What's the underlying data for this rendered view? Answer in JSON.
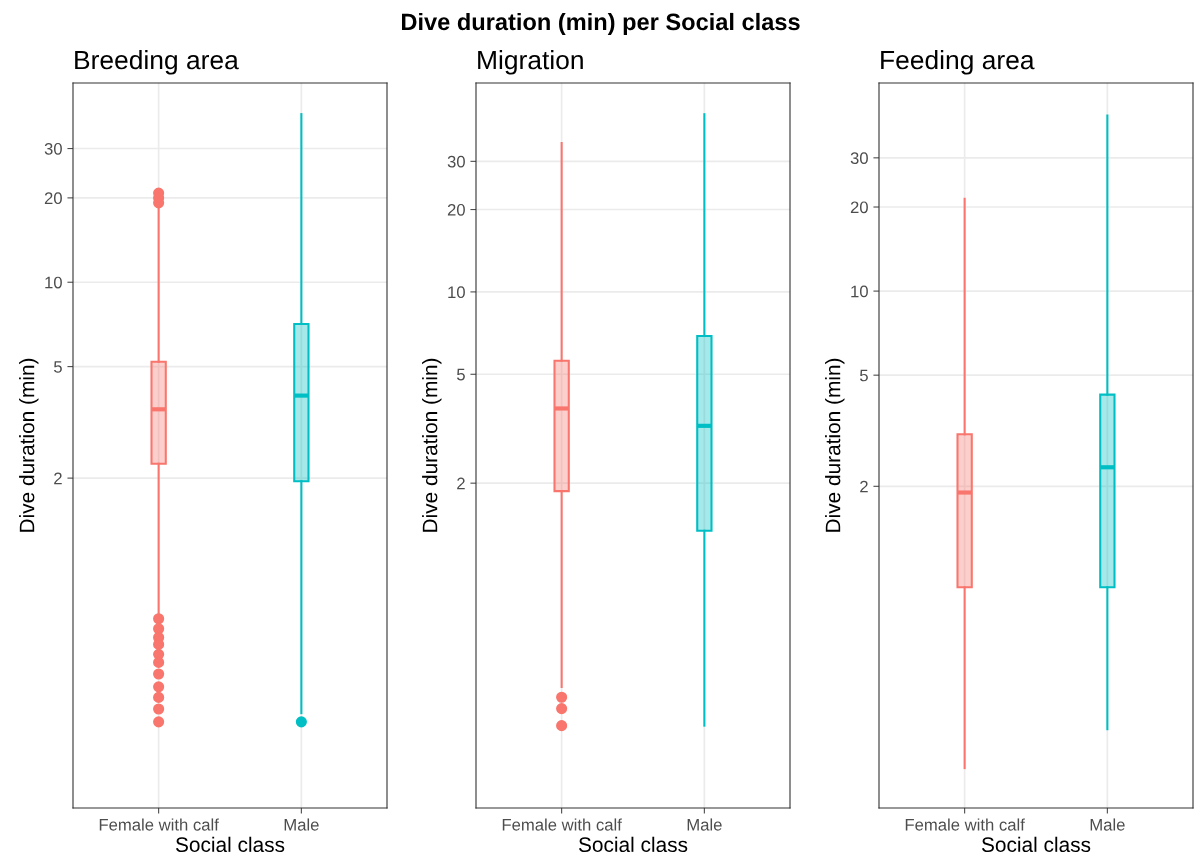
{
  "chart_data": [
    {
      "type": "box",
      "annotations": [
        "Dive duration (min) per Social class"
      ],
      "subtitle": "Breeding area",
      "xlabel": "Social class",
      "ylabel": "Dive duration (min)",
      "categories": [
        "Female with calf",
        "Male"
      ],
      "colors": [
        "#f8766d",
        "#00bfc4"
      ],
      "log": "y",
      "ylim": [
        0.133,
        51.4
      ],
      "yticks": [
        2,
        5,
        10,
        20,
        30
      ],
      "grid": true,
      "boxes": [
        {
          "low": 0.66,
          "q1": 2.25,
          "median": 3.52,
          "q3": 5.2,
          "high": 18.5,
          "outliers": [
            20.8,
            20,
            19.2,
            0.63,
            0.58,
            0.54,
            0.51,
            0.47,
            0.44,
            0.4,
            0.36,
            0.33,
            0.3,
            0.27
          ]
        },
        {
          "low": 0.29,
          "q1": 1.95,
          "median": 3.94,
          "q3": 7.1,
          "high": 39.8,
          "outliers": [
            0.27
          ]
        }
      ]
    },
    {
      "type": "box",
      "subtitle": "Migration",
      "xlabel": "Social class",
      "ylabel": "Dive duration (min)",
      "categories": [
        "Female with calf",
        "Male"
      ],
      "colors": [
        "#f8766d",
        "#00bfc4"
      ],
      "log": "y",
      "ylim": [
        0.13,
        58
      ],
      "yticks": [
        2,
        5,
        10,
        20,
        30
      ],
      "grid": true,
      "boxes": [
        {
          "low": 0.36,
          "q1": 1.87,
          "median": 3.75,
          "q3": 5.6,
          "high": 35,
          "outliers": [
            0.33,
            0.3,
            0.26
          ]
        },
        {
          "low": 0.26,
          "q1": 1.34,
          "median": 3.24,
          "q3": 6.9,
          "high": 44.6
        }
      ]
    },
    {
      "type": "box",
      "subtitle": "Feeding area",
      "xlabel": "Social class",
      "ylabel": "Dive duration (min)",
      "categories": [
        "Female with calf",
        "Male"
      ],
      "colors": [
        "#f8766d",
        "#00bfc4"
      ],
      "log": "y",
      "ylim": [
        0.141,
        55.6
      ],
      "yticks": [
        2,
        5,
        10,
        20,
        30
      ],
      "grid": true,
      "boxes": [
        {
          "low": 0.196,
          "q1": 0.87,
          "median": 1.9,
          "q3": 3.07,
          "high": 21.4
        },
        {
          "low": 0.27,
          "q1": 0.87,
          "median": 2.34,
          "q3": 4.26,
          "high": 42.5
        }
      ]
    }
  ]
}
